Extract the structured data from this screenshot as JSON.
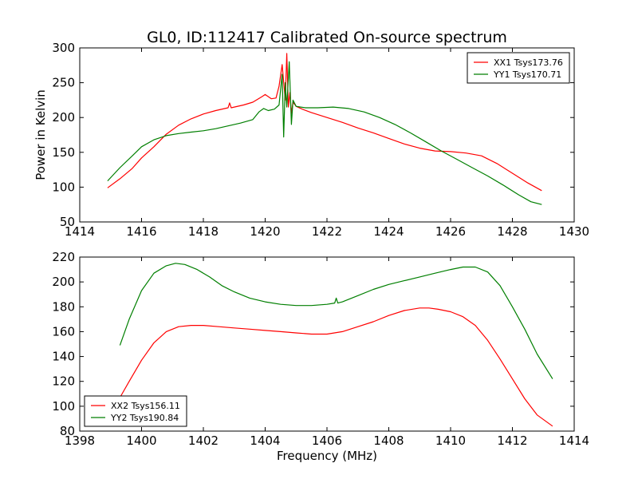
{
  "title": "GL0, ID:112417 Calibrated On-source spectrum",
  "colors": {
    "red": "#ff0000",
    "green": "#007f00"
  },
  "chart_data": [
    {
      "type": "line",
      "title": "GL0, ID:112417 Calibrated On-source spectrum",
      "xlabel": "",
      "ylabel": "Power in Kelvin",
      "xlim": [
        1414,
        1430
      ],
      "ylim": [
        50,
        300
      ],
      "xticks": [
        1414,
        1416,
        1418,
        1420,
        1422,
        1424,
        1426,
        1428,
        1430
      ],
      "yticks": [
        50,
        100,
        150,
        200,
        250,
        300
      ],
      "grid": false,
      "legend_position": "top-right",
      "series": [
        {
          "name": "XX1 Tsys173.76",
          "color": "#ff0000",
          "x": [
            1414.9,
            1415.3,
            1415.7,
            1416.0,
            1416.4,
            1416.8,
            1417.2,
            1417.6,
            1418.0,
            1418.4,
            1418.8,
            1418.85,
            1418.9,
            1419.3,
            1419.6,
            1419.9,
            1420.0,
            1420.2,
            1420.35,
            1420.45,
            1420.55,
            1420.65,
            1420.7,
            1420.75,
            1420.8,
            1420.85,
            1420.9,
            1421.0,
            1421.2,
            1421.5,
            1422.0,
            1422.5,
            1423.0,
            1423.5,
            1424.0,
            1424.5,
            1425.0,
            1425.5,
            1426.0,
            1426.5,
            1427.0,
            1427.5,
            1428.0,
            1428.5,
            1428.95
          ],
          "y": [
            99,
            112,
            127,
            142,
            158,
            176,
            189,
            198,
            205,
            210,
            214,
            221,
            214,
            218,
            222,
            230,
            233,
            227,
            228,
            245,
            276,
            225,
            292,
            215,
            236,
            206,
            222,
            216,
            212,
            207,
            200,
            193,
            185,
            178,
            170,
            162,
            156,
            152,
            151,
            149,
            145,
            134,
            120,
            106,
            95
          ]
        },
        {
          "name": "YY1 Tsys170.71",
          "color": "#007f00",
          "x": [
            1414.9,
            1415.3,
            1415.7,
            1416.0,
            1416.4,
            1416.8,
            1417.2,
            1417.6,
            1418.0,
            1418.4,
            1418.8,
            1419.2,
            1419.6,
            1419.8,
            1419.95,
            1420.1,
            1420.3,
            1420.45,
            1420.55,
            1420.6,
            1420.65,
            1420.7,
            1420.78,
            1420.85,
            1420.9,
            1421.0,
            1421.3,
            1421.7,
            1422.2,
            1422.7,
            1423.2,
            1423.7,
            1424.2,
            1424.7,
            1425.2,
            1425.7,
            1426.2,
            1426.7,
            1427.2,
            1427.7,
            1428.2,
            1428.6,
            1428.95
          ],
          "y": [
            109,
            128,
            145,
            158,
            168,
            174,
            177,
            179,
            181,
            184,
            188,
            192,
            197,
            208,
            213,
            210,
            212,
            218,
            262,
            172,
            250,
            215,
            280,
            190,
            225,
            216,
            214,
            214,
            215,
            213,
            208,
            200,
            190,
            178,
            165,
            152,
            140,
            128,
            116,
            103,
            89,
            79,
            75
          ]
        }
      ]
    },
    {
      "type": "line",
      "title": "",
      "xlabel": "Frequency (MHz)",
      "ylabel": "",
      "xlim": [
        1398,
        1414
      ],
      "ylim": [
        80,
        220
      ],
      "xticks": [
        1398,
        1400,
        1402,
        1404,
        1406,
        1408,
        1410,
        1412,
        1414
      ],
      "yticks": [
        80,
        100,
        120,
        140,
        160,
        180,
        200,
        220
      ],
      "grid": false,
      "legend_position": "bottom-left",
      "series": [
        {
          "name": "XX2 Tsys156.11",
          "color": "#ff0000",
          "x": [
            1399.3,
            1399.6,
            1400.0,
            1400.4,
            1400.8,
            1401.2,
            1401.6,
            1402.0,
            1402.5,
            1403.0,
            1403.5,
            1404.0,
            1404.5,
            1405.0,
            1405.5,
            1406.0,
            1406.5,
            1407.0,
            1407.5,
            1408.0,
            1408.5,
            1409.0,
            1409.3,
            1409.6,
            1410.0,
            1410.4,
            1410.8,
            1411.2,
            1411.6,
            1412.0,
            1412.4,
            1412.8,
            1413.3
          ],
          "y": [
            107,
            120,
            137,
            151,
            160,
            164,
            165,
            165,
            164,
            163,
            162,
            161,
            160,
            159,
            158,
            158,
            160,
            164,
            168,
            173,
            177,
            179,
            179,
            178,
            176,
            172,
            165,
            153,
            138,
            122,
            106,
            93,
            84
          ]
        },
        {
          "name": "YY2 Tsys190.84",
          "color": "#007f00",
          "x": [
            1399.3,
            1399.6,
            1400.0,
            1400.4,
            1400.8,
            1401.1,
            1401.4,
            1401.8,
            1402.2,
            1402.6,
            1403.0,
            1403.5,
            1404.0,
            1404.5,
            1405.0,
            1405.5,
            1406.0,
            1406.25,
            1406.3,
            1406.35,
            1406.5,
            1407.0,
            1407.5,
            1408.0,
            1408.5,
            1409.0,
            1409.5,
            1410.0,
            1410.4,
            1410.8,
            1411.2,
            1411.6,
            1412.0,
            1412.4,
            1412.8,
            1413.3
          ],
          "y": [
            149,
            170,
            193,
            207,
            213,
            215,
            214,
            210,
            204,
            197,
            192,
            187,
            184,
            182,
            181,
            181,
            182,
            183,
            187,
            183,
            184,
            189,
            194,
            198,
            201,
            204,
            207,
            210,
            212,
            212,
            208,
            197,
            180,
            162,
            142,
            122
          ]
        }
      ]
    }
  ]
}
